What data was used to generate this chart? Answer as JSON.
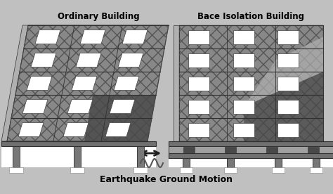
{
  "bg_color": "#c0c0c0",
  "title_left": "Ordinary Building",
  "title_right": "Bace Isolation Building",
  "bottom_text": "Earthquake Ground Motion",
  "brick_color": "#888888",
  "window_color": "#ffffff",
  "dark_color": "#484848",
  "floor_line_color": "#303030",
  "mid_gray": "#909090",
  "light_gray": "#b0b0b0",
  "col_color": "#787878",
  "white": "#ffffff",
  "arrow_color": "#202020",
  "slab_color": "#707070",
  "iso_color": "#a0a0a0",
  "dark_panel": "#606060"
}
